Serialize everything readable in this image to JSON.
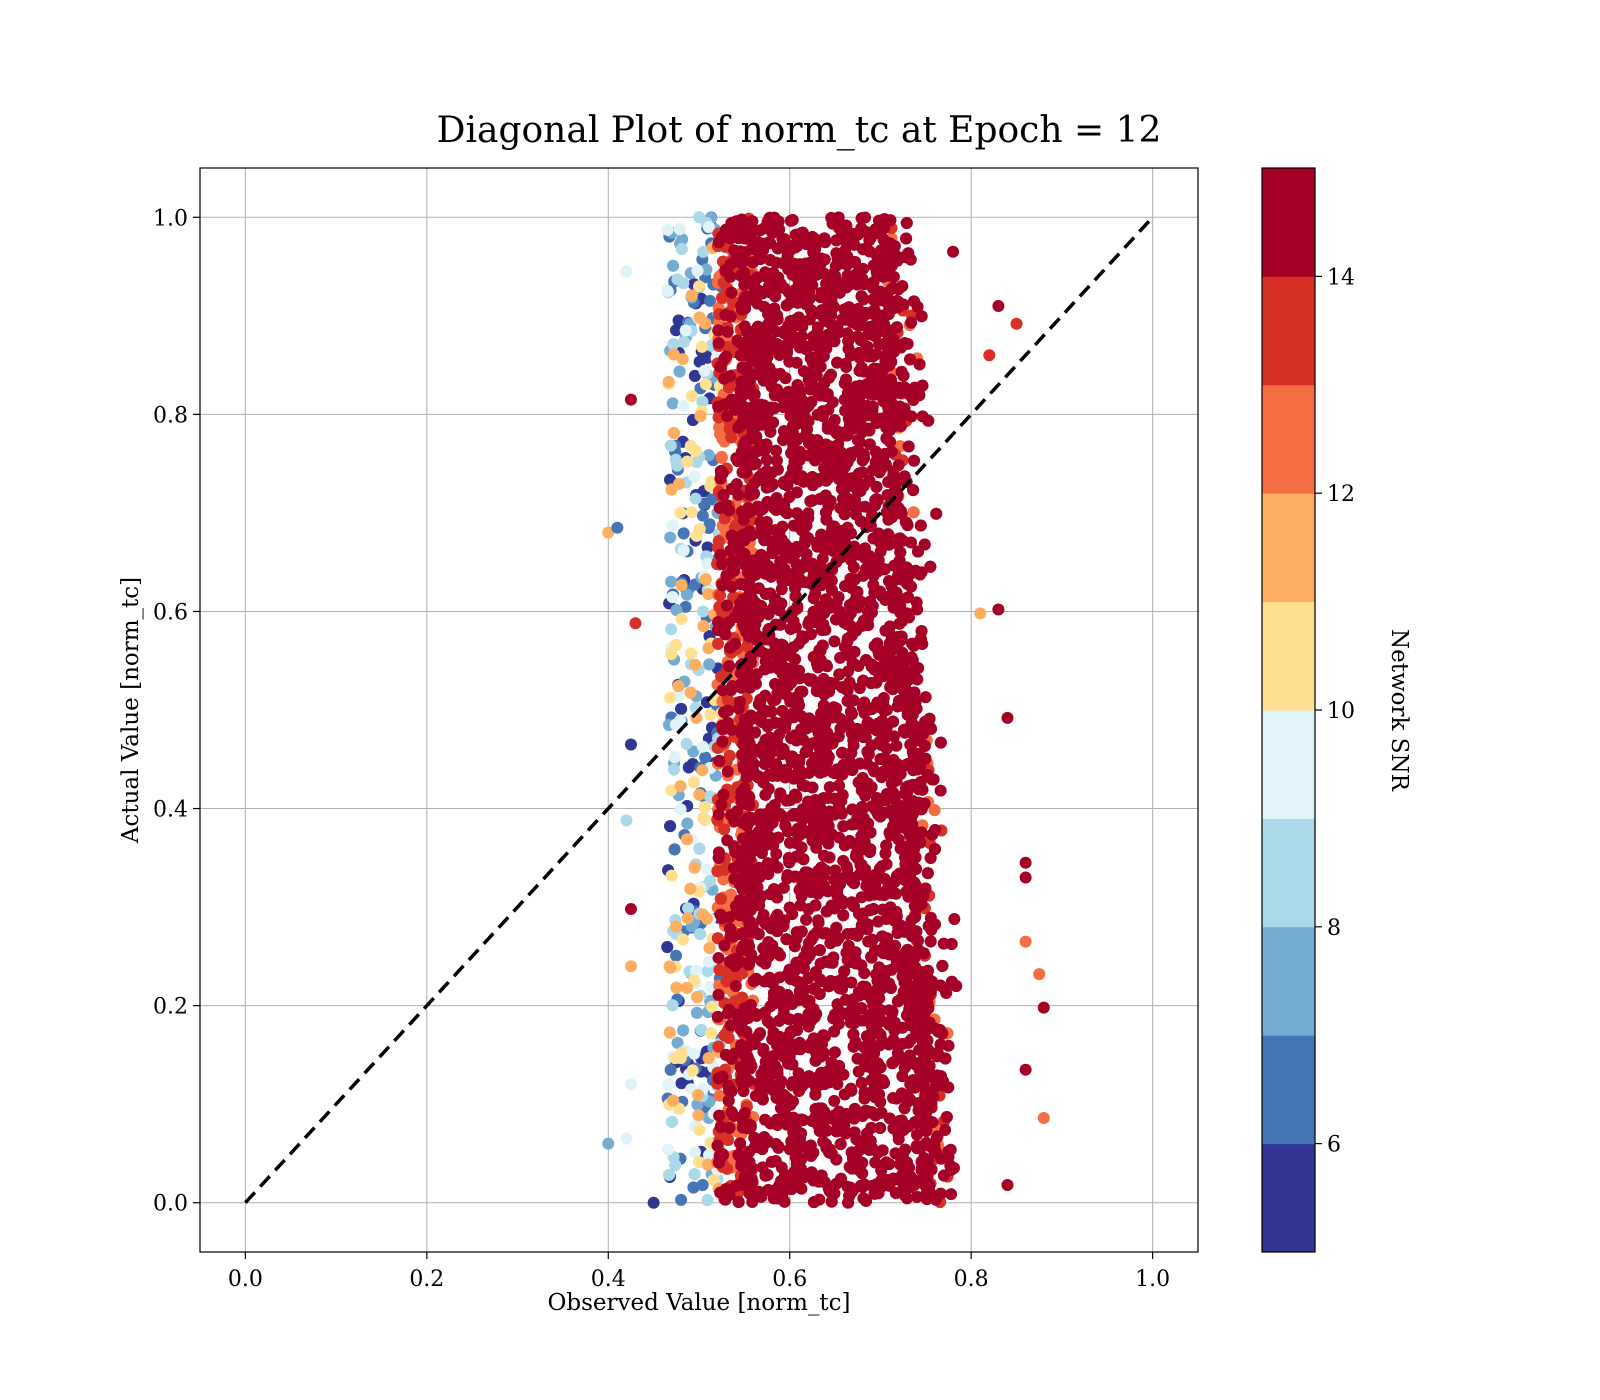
{
  "chart_data": {
    "type": "scatter",
    "title": "Diagonal Plot of norm_tc at Epoch = 12",
    "xlabel": "Observed Value [norm_tc]",
    "ylabel": "Actual Value [norm_tc]",
    "xlim": [
      -0.05,
      1.05
    ],
    "ylim": [
      -0.05,
      1.05
    ],
    "xticks": [
      "0.0",
      "0.2",
      "0.4",
      "0.6",
      "0.8",
      "1.0"
    ],
    "yticks": [
      "0.0",
      "0.2",
      "0.4",
      "0.6",
      "0.8",
      "1.0"
    ],
    "grid": true,
    "reference_line": {
      "style": "dashed",
      "color": "#000000",
      "from": [
        0,
        0
      ],
      "to": [
        1,
        1
      ]
    },
    "colorbar": {
      "label": "Network SNR",
      "range": [
        5,
        15
      ],
      "ticks": [
        "6",
        "8",
        "10",
        "12",
        "14"
      ],
      "colors": [
        "#313695",
        "#4575b4",
        "#74add1",
        "#abd9e9",
        "#e0f3f8",
        "#fee090",
        "#fdae61",
        "#f46d43",
        "#d73027",
        "#a50026"
      ]
    },
    "point_cloud": {
      "description_ranges": {
        "core_x_range": [
          0.53,
          0.78
        ],
        "x_spread_at_y0": [
          0.45,
          0.88
        ],
        "x_spread_at_y1": [
          0.45,
          0.77
        ],
        "y_range": [
          0,
          1
        ]
      },
      "points": [
        {
          "x": 0.4,
          "y": 0.68,
          "snr": 11.5
        },
        {
          "x": 0.41,
          "y": 0.685,
          "snr": 6
        },
        {
          "x": 0.4,
          "y": 0.06,
          "snr": 7
        },
        {
          "x": 0.42,
          "y": 0.945,
          "snr": 9.5
        },
        {
          "x": 0.425,
          "y": 0.815,
          "snr": 14.5
        },
        {
          "x": 0.425,
          "y": 0.465,
          "snr": 5.5
        },
        {
          "x": 0.43,
          "y": 0.588,
          "snr": 13
        },
        {
          "x": 0.425,
          "y": 0.298,
          "snr": 14.5
        },
        {
          "x": 0.42,
          "y": 0.388,
          "snr": 8.5
        },
        {
          "x": 0.425,
          "y": 0.24,
          "snr": 11
        },
        {
          "x": 0.42,
          "y": 0.065,
          "snr": 9.5
        },
        {
          "x": 0.425,
          "y": 0.12,
          "snr": 9.5
        },
        {
          "x": 0.45,
          "y": 0.0,
          "snr": 5.5
        },
        {
          "x": 0.81,
          "y": 0.598,
          "snr": 11
        },
        {
          "x": 0.83,
          "y": 0.602,
          "snr": 14.5
        },
        {
          "x": 0.82,
          "y": 0.86,
          "snr": 13
        },
        {
          "x": 0.83,
          "y": 0.91,
          "snr": 14
        },
        {
          "x": 0.85,
          "y": 0.892,
          "snr": 13.5
        },
        {
          "x": 0.84,
          "y": 0.492,
          "snr": 14.5
        },
        {
          "x": 0.86,
          "y": 0.345,
          "snr": 14.5
        },
        {
          "x": 0.86,
          "y": 0.33,
          "snr": 14.5
        },
        {
          "x": 0.86,
          "y": 0.265,
          "snr": 12.5
        },
        {
          "x": 0.875,
          "y": 0.232,
          "snr": 12.5
        },
        {
          "x": 0.88,
          "y": 0.198,
          "snr": 14.5
        },
        {
          "x": 0.86,
          "y": 0.135,
          "snr": 14.5
        },
        {
          "x": 0.88,
          "y": 0.086,
          "snr": 12.5
        },
        {
          "x": 0.84,
          "y": 0.018,
          "snr": 14.5
        },
        {
          "x": 0.78,
          "y": 0.965,
          "snr": 14.5
        }
      ]
    }
  }
}
